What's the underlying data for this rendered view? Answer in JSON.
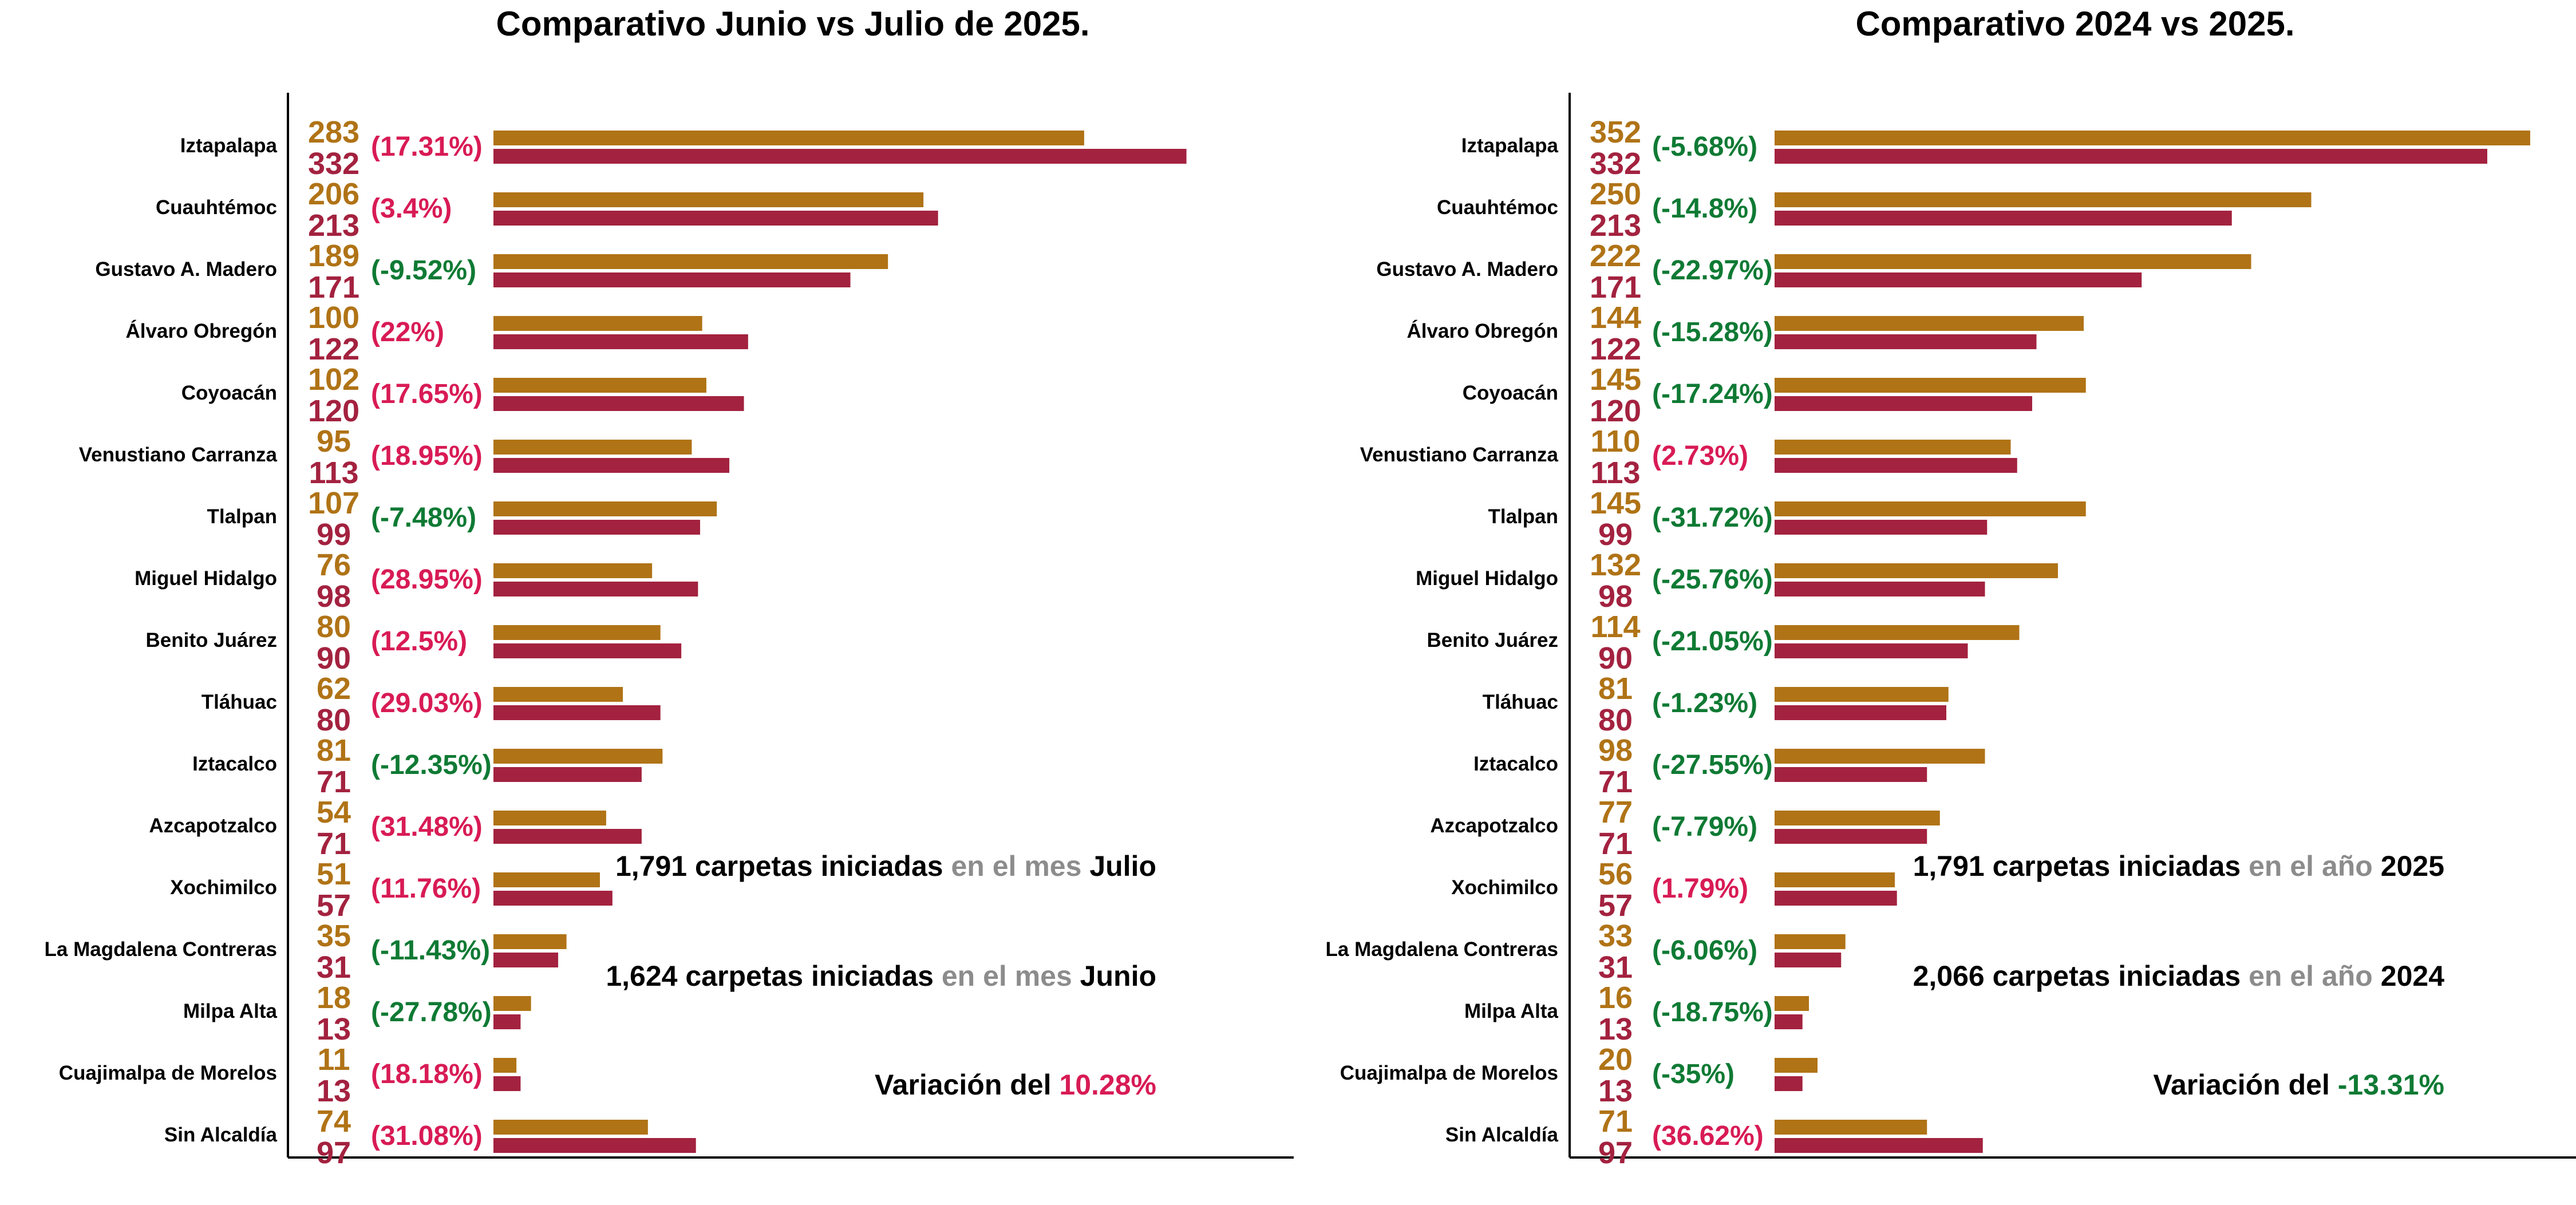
{
  "colors": {
    "prior": "#B07316",
    "current": "#A3223F",
    "increase": "#D81B55",
    "decrease": "#0F7A34",
    "label": "#000000",
    "muted": "#8C8C8C"
  },
  "chart_data": [
    {
      "type": "bar",
      "orientation": "horizontal",
      "title": "Comparativo Junio vs Julio de 2025.",
      "categories": [
        "Iztapalapa",
        "Cuauhtémoc",
        "Gustavo A. Madero",
        "Álvaro Obregón",
        "Coyoacán",
        "Venustiano Carranza",
        "Tlalpan",
        "Miguel Hidalgo",
        "Benito Juárez",
        "Tláhuac",
        "Iztacalco",
        "Azcapotzalco",
        "Xochimilco",
        "La Magdalena Contreras",
        "Milpa Alta",
        "Cuajimalpa de Morelos",
        "Sin Alcaldía"
      ],
      "series": [
        {
          "values": [
            283,
            206,
            189,
            100,
            102,
            95,
            107,
            76,
            80,
            62,
            81,
            54,
            51,
            35,
            18,
            11,
            74
          ]
        },
        {
          "values": [
            332,
            213,
            171,
            122,
            120,
            113,
            99,
            98,
            90,
            80,
            71,
            71,
            57,
            31,
            13,
            13,
            97
          ]
        }
      ],
      "variation_labels": [
        "(17.31%)",
        "(3.4%)",
        "(-9.52%)",
        "(22%)",
        "(17.65%)",
        "(18.95%)",
        "(-7.48%)",
        "(28.95%)",
        "(12.5%)",
        "(29.03%)",
        "(-12.35%)",
        "(31.48%)",
        "(11.76%)",
        "(-11.43%)",
        "(-27.78%)",
        "(18.18%)",
        "(31.08%)"
      ],
      "xlim": [
        0,
        362
      ],
      "summary": {
        "current_count": "1,791",
        "current_mid": "carpetas iniciadas",
        "current_muted": "en el mes",
        "current_period": "Julio",
        "prior_count": "1,624",
        "prior_mid": "carpetas iniciadas",
        "prior_muted": "en el mes",
        "prior_period": "Junio",
        "variation_prefix": "Variación del",
        "variation_value": "10.28%",
        "variation_sign": "increase"
      }
    },
    {
      "type": "bar",
      "orientation": "horizontal",
      "title": "Comparativo 2024 vs 2025.",
      "categories": [
        "Iztapalapa",
        "Cuauhtémoc",
        "Gustavo A. Madero",
        "Álvaro Obregón",
        "Coyoacán",
        "Venustiano Carranza",
        "Tlalpan",
        "Miguel Hidalgo",
        "Benito Juárez",
        "Tláhuac",
        "Iztacalco",
        "Azcapotzalco",
        "Xochimilco",
        "La Magdalena Contreras",
        "Milpa Alta",
        "Cuajimalpa de Morelos",
        "Sin Alcaldía"
      ],
      "series": [
        {
          "values": [
            352,
            250,
            222,
            144,
            145,
            110,
            145,
            132,
            114,
            81,
            98,
            77,
            56,
            33,
            16,
            20,
            71
          ]
        },
        {
          "values": [
            332,
            213,
            171,
            122,
            120,
            113,
            99,
            98,
            90,
            80,
            71,
            71,
            57,
            31,
            13,
            13,
            97
          ]
        }
      ],
      "variation_labels": [
        "(-5.68%)",
        "(-14.8%)",
        "(-22.97%)",
        "(-15.28%)",
        "(-17.24%)",
        "(2.73%)",
        "(-31.72%)",
        "(-25.76%)",
        "(-21.05%)",
        "(-1.23%)",
        "(-27.55%)",
        "(-7.79%)",
        "(1.79%)",
        "(-6.06%)",
        "(-18.75%)",
        "(-35%)",
        "(36.62%)"
      ],
      "xlim": [
        0,
        352
      ],
      "summary": {
        "current_count": "1,791",
        "current_mid": "carpetas iniciadas",
        "current_muted": "en el año",
        "current_period": "2025",
        "prior_count": "2,066",
        "prior_mid": "carpetas iniciadas",
        "prior_muted": "en el año",
        "prior_period": "2024",
        "variation_prefix": "Variación del",
        "variation_value": "-13.31%",
        "variation_sign": "decrease"
      }
    }
  ]
}
